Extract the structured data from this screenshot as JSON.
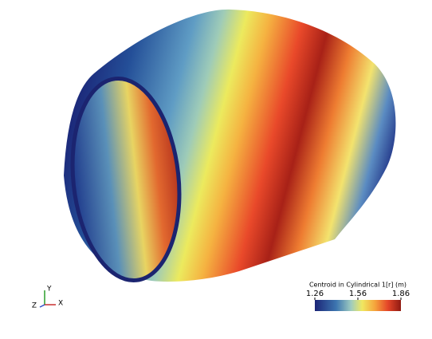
{
  "colorbar": {
    "title": "Centroid in Cylindrical 1[r] (m)",
    "range": [
      1.26,
      1.86
    ],
    "ticks": [
      1.26,
      1.56,
      1.86
    ]
  },
  "axes_triad": {
    "labels": [
      "Y",
      "Z",
      "X"
    ]
  }
}
